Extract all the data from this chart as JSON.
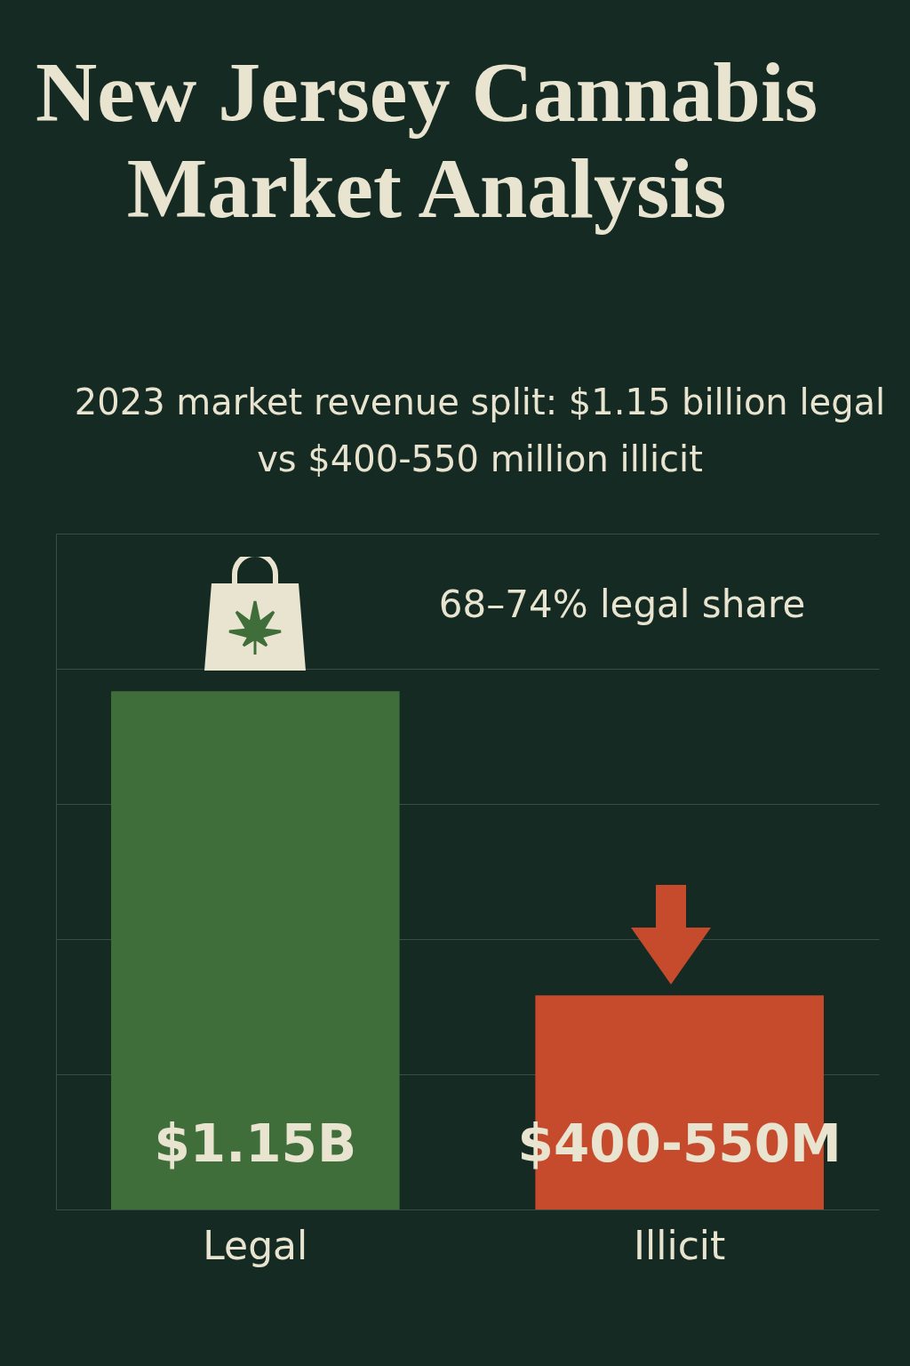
{
  "chart_data": {
    "type": "bar",
    "title": "New Jersey Cannabis Market Analysis",
    "subtitle": "2023 market revenue split: $1.15 billion legal vs $400-550 million illicit",
    "categories": [
      "Legal",
      "Illicit"
    ],
    "values": [
      1.15,
      0.475
    ],
    "colors": [
      "#3f6e3a",
      "#c64a2c"
    ],
    "value_labels": [
      "$1.15B",
      "$400-550M"
    ],
    "ylim": [
      0,
      1.5
    ],
    "yticks": [
      {
        "value": 0,
        "label": null
      },
      {
        "value": 0.3,
        "label": null
      },
      {
        "value": 0.6,
        "label": null
      },
      {
        "value": 0.9,
        "label": null
      },
      {
        "value": 1.2,
        "label": null
      },
      {
        "value": 1.5,
        "label": null
      }
    ],
    "tick_labels": "x",
    "grid": "y",
    "annotations": [
      "68–74% legal share"
    ]
  }
}
